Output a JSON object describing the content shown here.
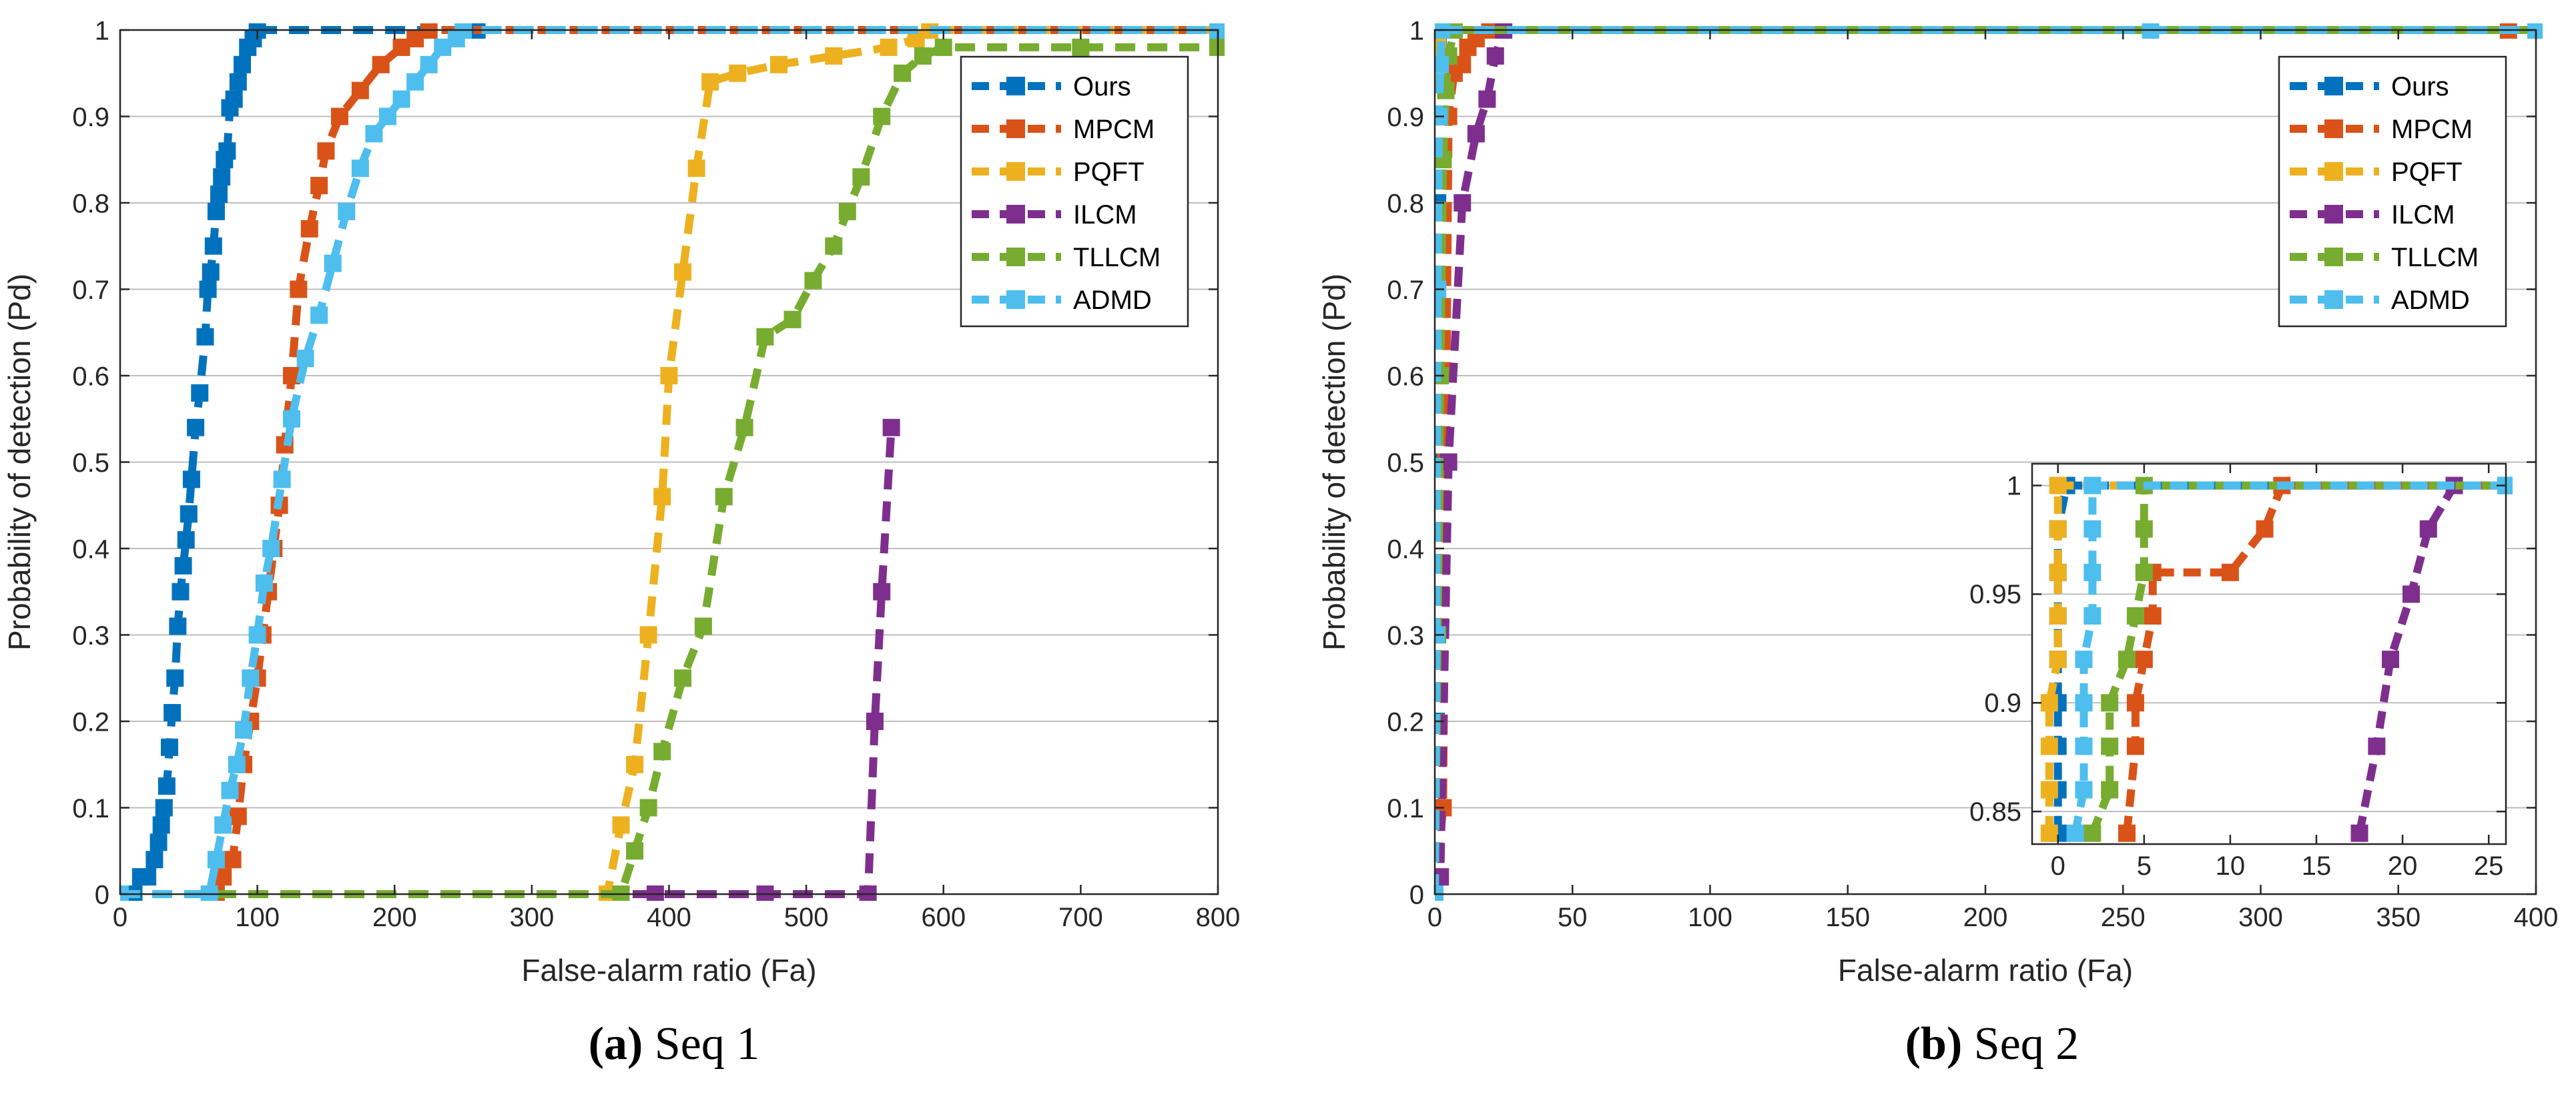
{
  "colors": {
    "Ours": "#0072BD",
    "MPCM": "#D95319",
    "PQFT": "#EDB120",
    "ILCM": "#7E2F8E",
    "TLLCM": "#77AC30",
    "ADMD": "#4DBEEE"
  },
  "captions": [
    {
      "letter": "(a)",
      "text": " Seq 1"
    },
    {
      "letter": "(b)",
      "text": " Seq 2"
    }
  ],
  "chart_data": [
    {
      "id": "seq1",
      "type": "line",
      "title": "",
      "xlabel": "False-alarm ratio (Fa)",
      "ylabel": "Probability of detection (Pd)",
      "xlim": [
        0,
        800
      ],
      "ylim": [
        0,
        1
      ],
      "xticks": [
        0,
        100,
        200,
        300,
        400,
        500,
        600,
        700,
        800
      ],
      "yticks": [
        0,
        0.1,
        0.2,
        0.3,
        0.4,
        0.5,
        0.6,
        0.7,
        0.8,
        0.9,
        1
      ],
      "legend_position": "top-right",
      "series": [
        {
          "name": "Ours",
          "points": [
            [
              0,
              0
            ],
            [
              10,
              0
            ],
            [
              15,
              0.02
            ],
            [
              20,
              0.02
            ],
            [
              25,
              0.04
            ],
            [
              28,
              0.06
            ],
            [
              30,
              0.08
            ],
            [
              32,
              0.1
            ],
            [
              34,
              0.125
            ],
            [
              36,
              0.17
            ],
            [
              38,
              0.21
            ],
            [
              40,
              0.25
            ],
            [
              42,
              0.31
            ],
            [
              44,
              0.35
            ],
            [
              46,
              0.38
            ],
            [
              48,
              0.41
            ],
            [
              50,
              0.44
            ],
            [
              52,
              0.48
            ],
            [
              55,
              0.54
            ],
            [
              58,
              0.58
            ],
            [
              62,
              0.645
            ],
            [
              64,
              0.7
            ],
            [
              66,
              0.72
            ],
            [
              68,
              0.75
            ],
            [
              70,
              0.79
            ],
            [
              72,
              0.81
            ],
            [
              74,
              0.83
            ],
            [
              76,
              0.85
            ],
            [
              78,
              0.86
            ],
            [
              80,
              0.91
            ],
            [
              83,
              0.92
            ],
            [
              86,
              0.94
            ],
            [
              89,
              0.96
            ],
            [
              93,
              0.98
            ],
            [
              97,
              0.99
            ],
            [
              100,
              1
            ],
            [
              260,
              1
            ],
            [
              800,
              1
            ]
          ]
        },
        {
          "name": "MPCM",
          "points": [
            [
              0,
              0
            ],
            [
              70,
              0
            ],
            [
              75,
              0.02
            ],
            [
              82,
              0.04
            ],
            [
              86,
              0.09
            ],
            [
              90,
              0.15
            ],
            [
              95,
              0.2
            ],
            [
              100,
              0.25
            ],
            [
              104,
              0.3
            ],
            [
              108,
              0.35
            ],
            [
              112,
              0.4
            ],
            [
              116,
              0.45
            ],
            [
              120,
              0.52
            ],
            [
              125,
              0.6
            ],
            [
              130,
              0.7
            ],
            [
              138,
              0.77
            ],
            [
              145,
              0.82
            ],
            [
              150,
              0.86
            ],
            [
              160,
              0.9
            ],
            [
              175,
              0.93
            ],
            [
              190,
              0.96
            ],
            [
              205,
              0.98
            ],
            [
              215,
              0.99
            ],
            [
              225,
              1
            ],
            [
              800,
              1
            ]
          ]
        },
        {
          "name": "PQFT",
          "points": [
            [
              0,
              0
            ],
            [
              355,
              0
            ],
            [
              365,
              0.08
            ],
            [
              375,
              0.15
            ],
            [
              385,
              0.3
            ],
            [
              395,
              0.46
            ],
            [
              400,
              0.6
            ],
            [
              410,
              0.72
            ],
            [
              420,
              0.84
            ],
            [
              430,
              0.94
            ],
            [
              450,
              0.95
            ],
            [
              480,
              0.96
            ],
            [
              520,
              0.97
            ],
            [
              560,
              0.98
            ],
            [
              580,
              0.99
            ],
            [
              590,
              1
            ],
            [
              800,
              1
            ]
          ]
        },
        {
          "name": "ILCM",
          "points": [
            [
              0,
              0
            ],
            [
              390,
              0
            ],
            [
              470,
              0
            ],
            [
              545,
              0
            ],
            [
              550,
              0.2
            ],
            [
              555,
              0.35
            ],
            [
              562,
              0.54
            ]
          ]
        },
        {
          "name": "TLLCM",
          "points": [
            [
              0,
              0
            ],
            [
              365,
              0
            ],
            [
              375,
              0.05
            ],
            [
              385,
              0.1
            ],
            [
              395,
              0.165
            ],
            [
              410,
              0.25
            ],
            [
              425,
              0.31
            ],
            [
              440,
              0.46
            ],
            [
              455,
              0.54
            ],
            [
              470,
              0.645
            ],
            [
              490,
              0.665
            ],
            [
              505,
              0.71
            ],
            [
              520,
              0.75
            ],
            [
              530,
              0.79
            ],
            [
              540,
              0.83
            ],
            [
              555,
              0.9
            ],
            [
              570,
              0.95
            ],
            [
              585,
              0.97
            ],
            [
              600,
              0.98
            ],
            [
              700,
              0.98
            ],
            [
              800,
              0.98
            ]
          ]
        },
        {
          "name": "ADMD",
          "points": [
            [
              0,
              0
            ],
            [
              65,
              0
            ],
            [
              70,
              0.04
            ],
            [
              75,
              0.08
            ],
            [
              80,
              0.12
            ],
            [
              85,
              0.15
            ],
            [
              90,
              0.19
            ],
            [
              95,
              0.25
            ],
            [
              100,
              0.3
            ],
            [
              105,
              0.36
            ],
            [
              110,
              0.4
            ],
            [
              118,
              0.48
            ],
            [
              125,
              0.55
            ],
            [
              135,
              0.62
            ],
            [
              145,
              0.67
            ],
            [
              155,
              0.73
            ],
            [
              165,
              0.79
            ],
            [
              175,
              0.84
            ],
            [
              185,
              0.88
            ],
            [
              195,
              0.9
            ],
            [
              205,
              0.92
            ],
            [
              215,
              0.94
            ],
            [
              225,
              0.96
            ],
            [
              235,
              0.98
            ],
            [
              245,
              0.99
            ],
            [
              250,
              1
            ],
            [
              800,
              1
            ]
          ]
        }
      ]
    },
    {
      "id": "seq2",
      "type": "line",
      "title": "",
      "xlabel": "False-alarm ratio (Fa)",
      "ylabel": "Probability of detection (Pd)",
      "xlim": [
        0,
        400
      ],
      "ylim": [
        0,
        1
      ],
      "xticks": [
        0,
        50,
        100,
        150,
        200,
        250,
        300,
        350,
        400
      ],
      "yticks": [
        0,
        0.1,
        0.2,
        0.3,
        0.4,
        0.5,
        0.6,
        0.7,
        0.8,
        0.9,
        1
      ],
      "legend_position": "top-right",
      "series": [
        {
          "name": "Ours",
          "points": [
            [
              0,
              0
            ],
            [
              0.5,
              0.2
            ],
            [
              0.8,
              0.5
            ],
            [
              1,
              0.8
            ],
            [
              1.2,
              0.98
            ],
            [
              1.5,
              1
            ],
            [
              400,
              1
            ]
          ]
        },
        {
          "name": "MPCM",
          "points": [
            [
              0,
              0
            ],
            [
              3,
              0.1
            ],
            [
              4,
              0.5
            ],
            [
              5,
              0.9
            ],
            [
              7,
              0.95
            ],
            [
              10,
              0.96
            ],
            [
              12,
              0.98
            ],
            [
              15,
              0.99
            ],
            [
              20,
              1
            ],
            [
              390,
              1
            ]
          ]
        },
        {
          "name": "PQFT",
          "points": [
            [
              0,
              0
            ],
            [
              0.3,
              0.3
            ],
            [
              0.5,
              0.7
            ],
            [
              0.8,
              0.9
            ],
            [
              1,
              0.98
            ],
            [
              1.5,
              1
            ],
            [
              400,
              1
            ]
          ]
        },
        {
          "name": "ILCM",
          "points": [
            [
              0,
              0
            ],
            [
              2,
              0.02
            ],
            [
              5,
              0.5
            ],
            [
              10,
              0.8
            ],
            [
              15,
              0.88
            ],
            [
              19,
              0.92
            ],
            [
              22,
              0.97
            ],
            [
              25,
              1
            ]
          ]
        },
        {
          "name": "TLLCM",
          "points": [
            [
              0,
              0
            ],
            [
              1,
              0.3
            ],
            [
              2,
              0.6
            ],
            [
              3,
              0.85
            ],
            [
              4,
              0.93
            ],
            [
              5,
              0.97
            ],
            [
              7,
              1
            ],
            [
              400,
              1
            ]
          ]
        },
        {
          "name": "ADMD",
          "points": [
            [
              0,
              0
            ],
            [
              0.5,
              0.3
            ],
            [
              1,
              0.7
            ],
            [
              1.5,
              0.9
            ],
            [
              2,
              0.96
            ],
            [
              2.5,
              1
            ],
            [
              260,
              1
            ],
            [
              400,
              1
            ]
          ]
        }
      ],
      "inset": {
        "xlim": [
          -1.5,
          26
        ],
        "ylim": [
          0.835,
          1.01
        ],
        "xticks": [
          0,
          5,
          10,
          15,
          20,
          25
        ],
        "yticks": [
          0.85,
          0.9,
          0.95,
          1
        ],
        "series": [
          {
            "name": "Ours",
            "points": [
              [
                0,
                0.84
              ],
              [
                0,
                0.86
              ],
              [
                0,
                0.88
              ],
              [
                0,
                0.9
              ],
              [
                0,
                0.92
              ],
              [
                0,
                0.94
              ],
              [
                0,
                0.96
              ],
              [
                0,
                0.98
              ],
              [
                0.5,
                1
              ],
              [
                26,
                1
              ]
            ]
          },
          {
            "name": "MPCM",
            "points": [
              [
                4,
                0.84
              ],
              [
                4.5,
                0.88
              ],
              [
                4.5,
                0.9
              ],
              [
                5,
                0.92
              ],
              [
                5.5,
                0.94
              ],
              [
                5.5,
                0.96
              ],
              [
                10,
                0.96
              ],
              [
                12,
                0.98
              ],
              [
                13,
                1
              ],
              [
                26,
                1
              ]
            ]
          },
          {
            "name": "PQFT",
            "points": [
              [
                -0.5,
                0.84
              ],
              [
                -0.5,
                0.86
              ],
              [
                -0.5,
                0.88
              ],
              [
                -0.5,
                0.9
              ],
              [
                0,
                0.92
              ],
              [
                0,
                0.94
              ],
              [
                0,
                0.96
              ],
              [
                0,
                0.98
              ],
              [
                0,
                1
              ],
              [
                26,
                1
              ]
            ]
          },
          {
            "name": "ILCM",
            "points": [
              [
                17.5,
                0.84
              ],
              [
                18.5,
                0.88
              ],
              [
                19.3,
                0.92
              ],
              [
                20.5,
                0.95
              ],
              [
                21.5,
                0.98
              ],
              [
                23,
                1
              ]
            ]
          },
          {
            "name": "TLLCM",
            "points": [
              [
                2,
                0.84
              ],
              [
                3,
                0.86
              ],
              [
                3,
                0.88
              ],
              [
                3,
                0.9
              ],
              [
                4,
                0.92
              ],
              [
                4.5,
                0.94
              ],
              [
                5,
                0.96
              ],
              [
                5,
                0.98
              ],
              [
                5,
                1
              ],
              [
                26,
                1
              ]
            ]
          },
          {
            "name": "ADMD",
            "points": [
              [
                1,
                0.84
              ],
              [
                1.5,
                0.86
              ],
              [
                1.5,
                0.88
              ],
              [
                1.5,
                0.9
              ],
              [
                1.5,
                0.92
              ],
              [
                2,
                0.94
              ],
              [
                2,
                0.96
              ],
              [
                2,
                0.98
              ],
              [
                2,
                1
              ],
              [
                26,
                1
              ]
            ]
          }
        ]
      }
    }
  ]
}
